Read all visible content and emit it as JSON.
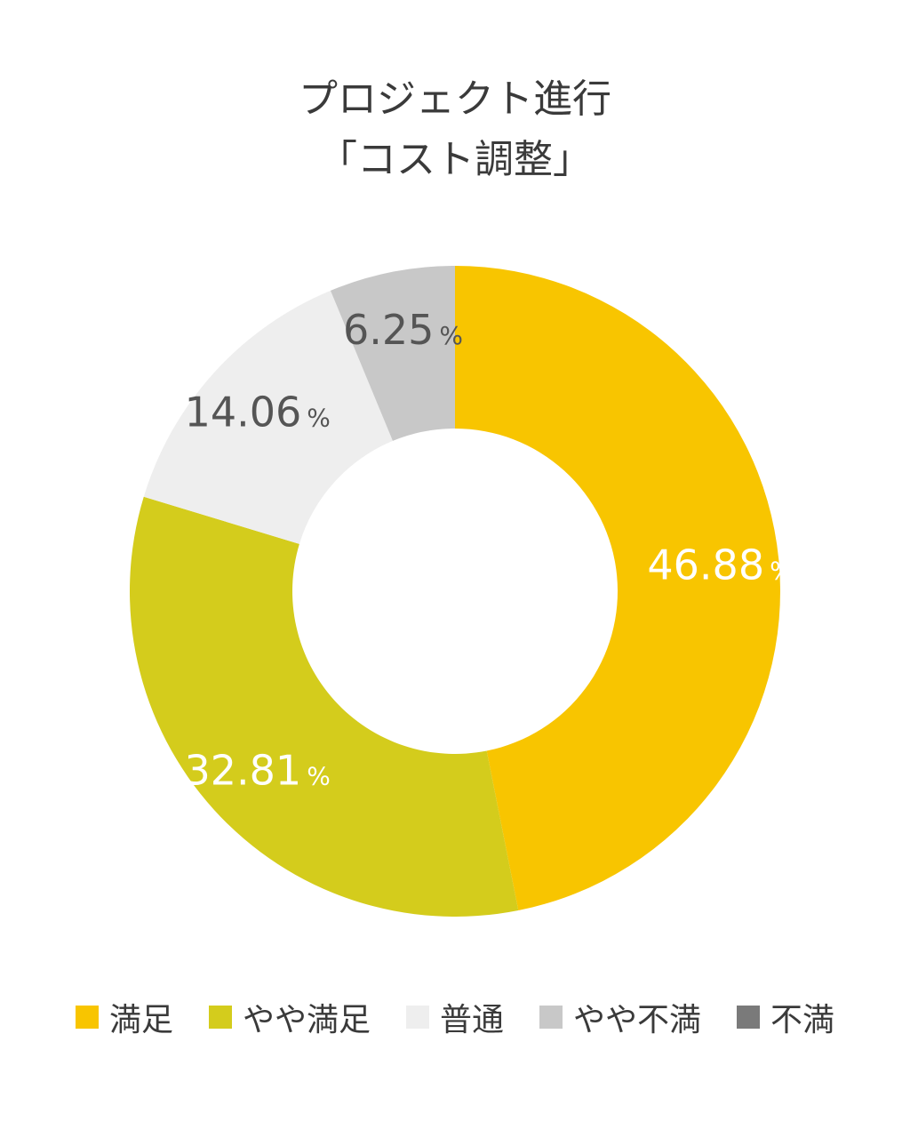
{
  "chart_data": {
    "type": "pie",
    "style": "donut",
    "title_lines": [
      "プロジェクト進行",
      "「コスト調整」"
    ],
    "categories": [
      "満足",
      "やや満足",
      "普通",
      "やや不満",
      "不満"
    ],
    "values": [
      46.88,
      32.81,
      14.06,
      6.25,
      0
    ],
    "value_labels": [
      "46.88",
      "32.81",
      "14.06",
      "6.25",
      ""
    ],
    "unit": "%",
    "colors": [
      "#F8C500",
      "#D4CC1C",
      "#EEEEEE",
      "#C8C8C8",
      "#7A7A7A"
    ],
    "label_colors": [
      "#ffffff",
      "#ffffff",
      "#555555",
      "#555555",
      "#555555"
    ],
    "start_angle": "top, clockwise",
    "legend_position": "bottom"
  }
}
